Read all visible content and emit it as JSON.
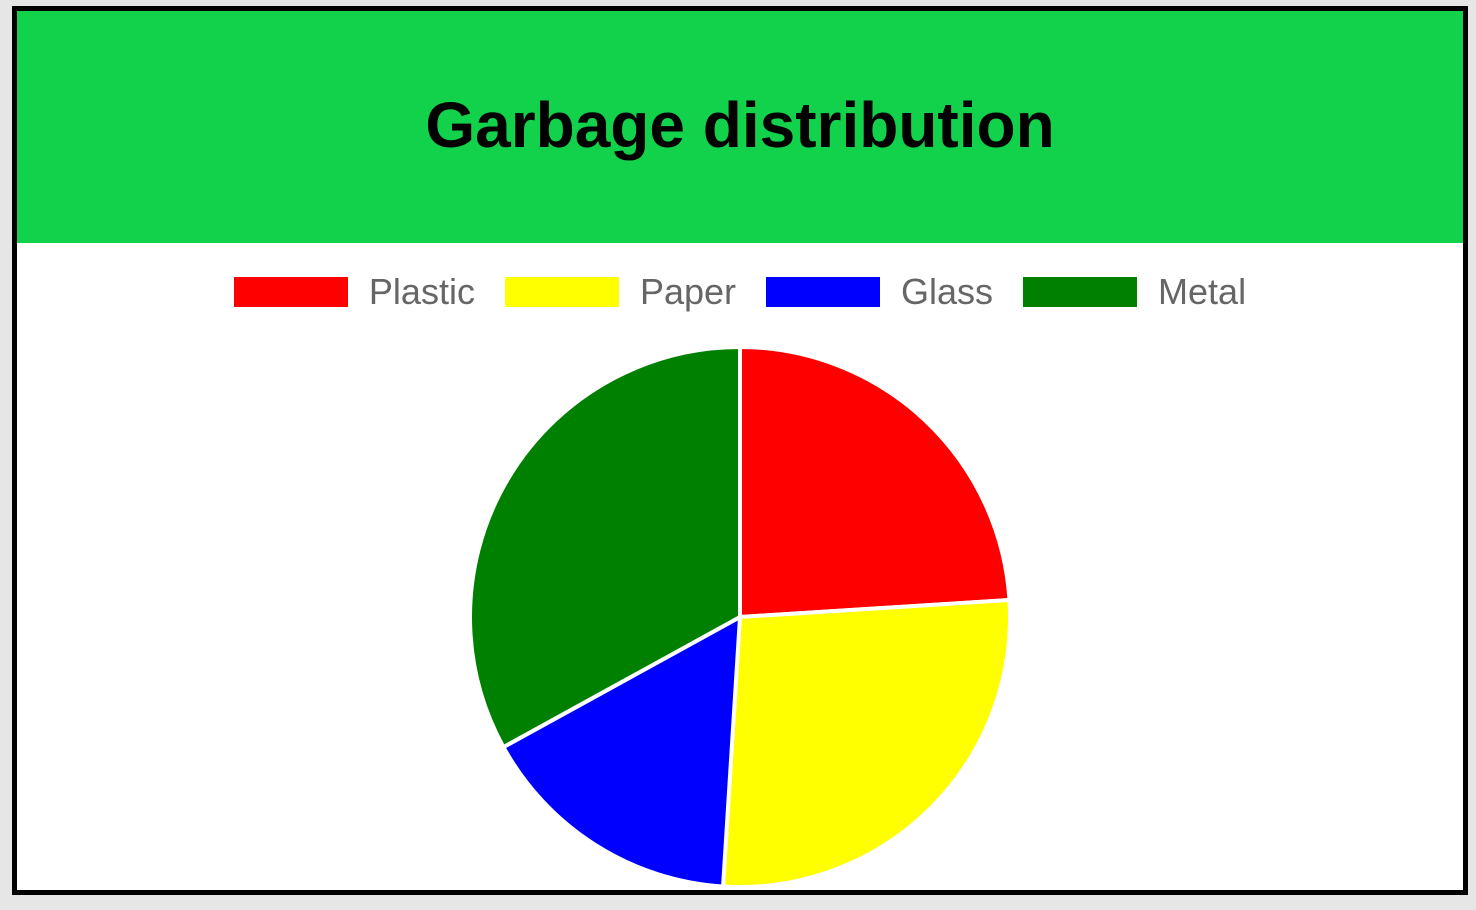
{
  "chart_data": {
    "type": "pie",
    "title": "Garbage distribution",
    "header_color": "#12d14b",
    "slices": [
      {
        "label": "Plastic",
        "value": 24,
        "color": "#ff0000"
      },
      {
        "label": "Paper",
        "value": 27,
        "color": "#ffff00"
      },
      {
        "label": "Glass",
        "value": 16,
        "color": "#0000ff"
      },
      {
        "label": "Metal",
        "value": 33,
        "color": "#008000"
      }
    ],
    "legend_position": "top"
  }
}
